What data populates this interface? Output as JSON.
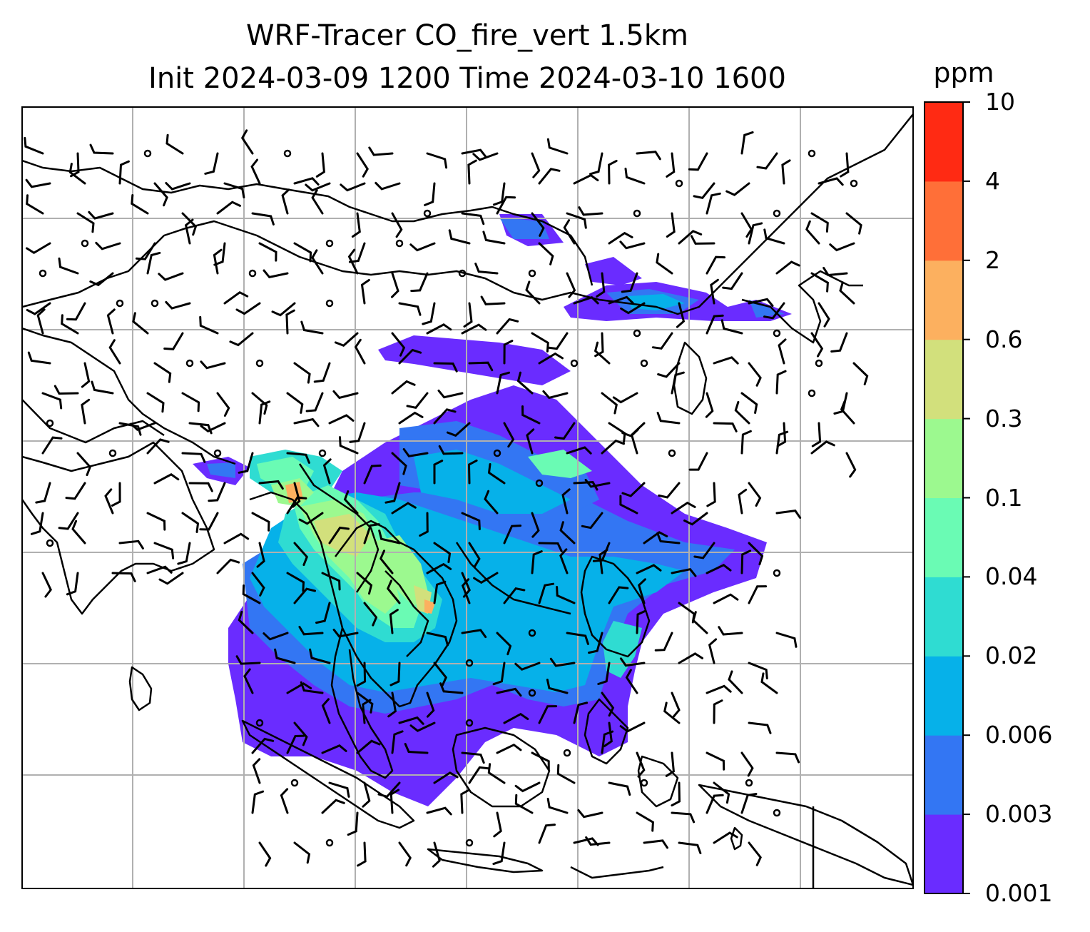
{
  "title_line1": "WRF-Tracer CO_fire_vert 1.5km",
  "title_line2": "Init 2024-03-09 1200 Time 2024-03-10 1600",
  "colorbar": {
    "unit": "ppm",
    "levels": [
      "0.001",
      "0.003",
      "0.006",
      "0.02",
      "0.04",
      "0.1",
      "0.3",
      "0.6",
      "2",
      "4",
      "10"
    ],
    "colors": [
      "#6a2cff",
      "#3376f3",
      "#06b1e9",
      "#2fdcd2",
      "#6afbb4",
      "#9cf98f",
      "#d2e07c",
      "#fcb05f",
      "#ff6f38",
      "#ff2a13"
    ]
  },
  "map": {
    "gridlines": true,
    "coastline_color": "#000000",
    "wind_barbs": "black"
  }
}
